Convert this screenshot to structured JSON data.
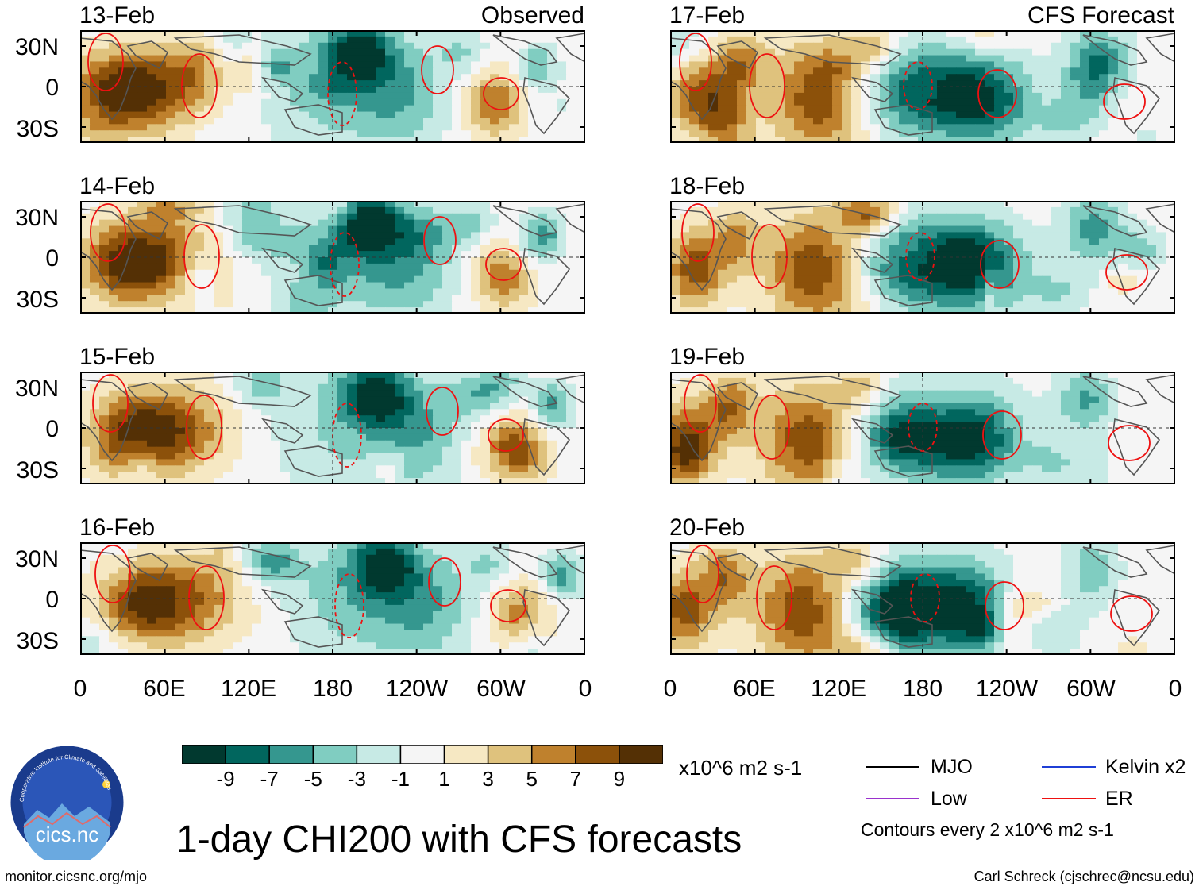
{
  "title": "1-day CHI200 with CFS forecasts",
  "labels": {
    "observed": "Observed",
    "forecast": "CFS Forecast"
  },
  "panels": [
    {
      "date": "13-Feb",
      "column": "observed",
      "seed": 3
    },
    {
      "date": "14-Feb",
      "column": "observed",
      "seed": 7
    },
    {
      "date": "15-Feb",
      "column": "observed",
      "seed": 11
    },
    {
      "date": "16-Feb",
      "column": "observed",
      "seed": 17
    },
    {
      "date": "17-Feb",
      "column": "forecast",
      "seed": 23
    },
    {
      "date": "18-Feb",
      "column": "forecast",
      "seed": 29
    },
    {
      "date": "19-Feb",
      "column": "forecast",
      "seed": 31
    },
    {
      "date": "20-Feb",
      "column": "forecast",
      "seed": 37
    }
  ],
  "axes": {
    "y_ticks": [
      "30N",
      "0",
      "30S"
    ],
    "x_ticks": [
      "0",
      "60E",
      "120E",
      "180",
      "120W",
      "60W",
      "0"
    ]
  },
  "colorbar": {
    "colors": [
      "#01392f",
      "#01665e",
      "#35978f",
      "#80cdc1",
      "#c7eae5",
      "#f5f5f5",
      "#f6e8c3",
      "#dfc27d",
      "#bf812d",
      "#8c510a",
      "#543005"
    ],
    "labels": [
      "-9",
      "-7",
      "-5",
      "-3",
      "-1",
      "1",
      "3",
      "5",
      "7",
      "9"
    ],
    "units": "x10^6 m2 s-1"
  },
  "legend": {
    "items": [
      {
        "name": "MJO",
        "color": "#000000"
      },
      {
        "name": "Kelvin x2",
        "color": "#1f3fd6"
      },
      {
        "name": "Low",
        "color": "#9a32cd"
      },
      {
        "name": "ER",
        "color": "#ee1111"
      }
    ],
    "note": "Contours every 2 x10^6 m2 s-1"
  },
  "logo_text": "cics.nc",
  "logo_ring_text": "Cooperative Institute for Climate and Satellites",
  "footer": {
    "left": "monitor.cicsnc.org/mjo",
    "right": "Carl Schreck (cjschrec@ncsu.edu)"
  },
  "chart_data": {
    "type": "heatmap",
    "variable": "CHI200",
    "x_range": [
      "0",
      "0"
    ],
    "y_range": [
      "40S",
      "40N"
    ],
    "contour_interval": 2,
    "levels": [
      -9,
      -7,
      -5,
      -3,
      -1,
      1,
      3,
      5,
      7,
      9
    ]
  }
}
